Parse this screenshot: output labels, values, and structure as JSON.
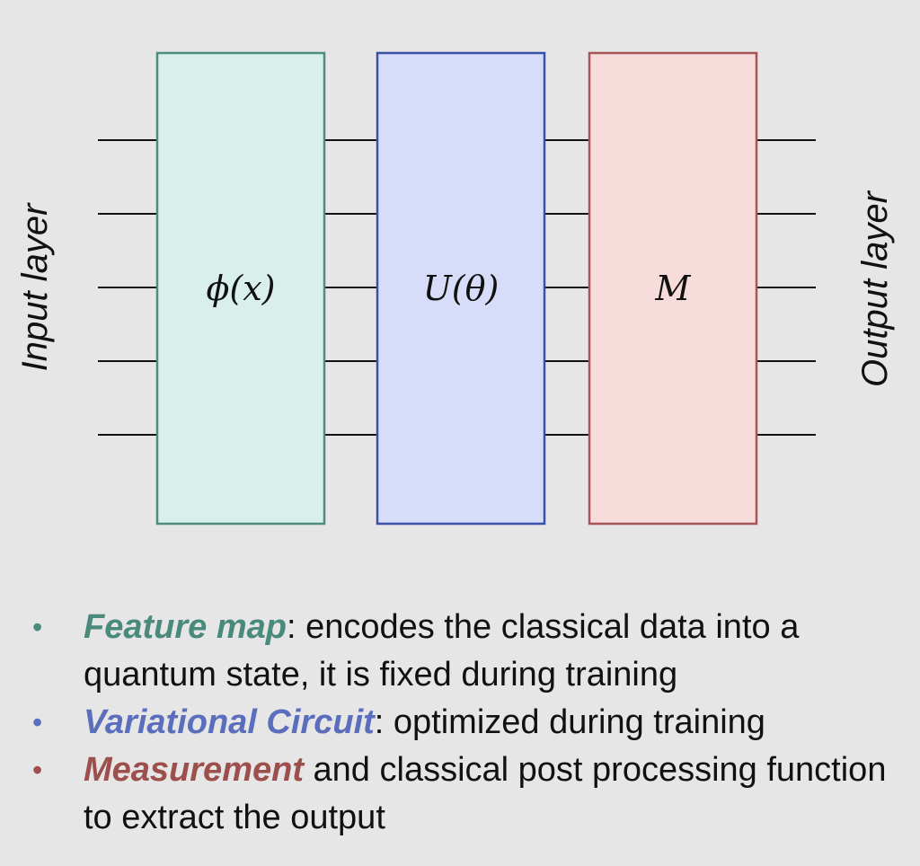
{
  "diagram": {
    "input_label": "Input layer",
    "output_label": "Output layer",
    "wire_count": 5,
    "gates": [
      {
        "name": "feature-map",
        "label": "ϕ(x)",
        "fill": "#d9efeb",
        "stroke": "#4d8b7d"
      },
      {
        "name": "variational-circuit",
        "label": "U(θ)",
        "fill": "#d7dcf8",
        "stroke": "#3a51a8"
      },
      {
        "name": "measurement",
        "label": "M",
        "fill": "#f8dcdc",
        "stroke": "#a55555"
      }
    ]
  },
  "bullets": [
    {
      "term": "Feature map",
      "text": ": encodes the classical data into a quantum state, it is fixed during training",
      "color": "#4a8a7c"
    },
    {
      "term": "Variational Circuit",
      "text": ": optimized during training",
      "color": "#5a6ebd"
    },
    {
      "term": "Measurement",
      "text": " and classical post processing function to extract the output",
      "color": "#9c4f4c"
    }
  ]
}
